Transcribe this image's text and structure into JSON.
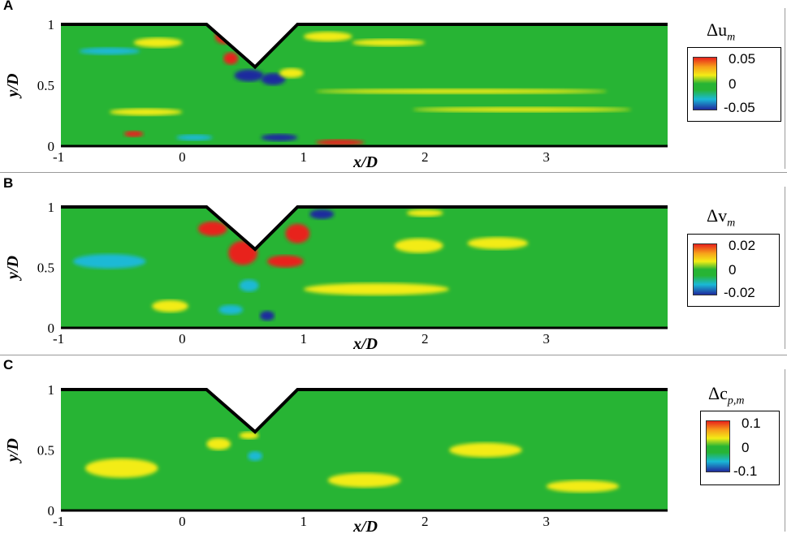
{
  "panels": [
    {
      "letter": "A",
      "quantity": "Δu",
      "subscript": "m",
      "cbar_labels": [
        "0.05",
        "0",
        "-0.05"
      ]
    },
    {
      "letter": "B",
      "quantity": "Δv",
      "subscript": "m",
      "cbar_labels": [
        "0.02",
        "0",
        "-0.02"
      ]
    },
    {
      "letter": "C",
      "quantity": "Δc",
      "subscript": "p,m",
      "cbar_labels": [
        "0.1",
        "0",
        "-0.1"
      ]
    }
  ],
  "colors": {
    "high": "#e8231c",
    "mid_high": "#f3ec16",
    "zero": "#27b434",
    "mid_low": "#1ab9d6",
    "low": "#1f2a9e"
  },
  "chart_data": [
    {
      "type": "heatmap",
      "title": "A",
      "xlabel": "x/D",
      "ylabel": "y/D",
      "xlim": [
        -1,
        4
      ],
      "ylim": [
        0,
        1
      ],
      "xticks": [
        "-1",
        "0",
        "1",
        "2",
        "3"
      ],
      "yticks": [
        "0",
        "0.5",
        "1"
      ],
      "colorbar": {
        "label": "Δu_m",
        "range": [
          -0.05,
          0.05
        ],
        "ticks": [
          "0.05",
          "0",
          "-0.05"
        ]
      },
      "geometry": "wall at y/D=1 with V-shaped notch spanning x/D≈0.2–1.0, apex at y/D≈0.65 near x/D≈0.6"
    },
    {
      "type": "heatmap",
      "title": "B",
      "xlabel": "x/D",
      "ylabel": "y/D",
      "xlim": [
        -1,
        4
      ],
      "ylim": [
        0,
        1
      ],
      "xticks": [
        "-1",
        "0",
        "1",
        "2",
        "3"
      ],
      "yticks": [
        "0",
        "0.5",
        "1"
      ],
      "colorbar": {
        "label": "Δv_m",
        "range": [
          -0.02,
          0.02
        ],
        "ticks": [
          "0.02",
          "0",
          "-0.02"
        ]
      }
    },
    {
      "type": "heatmap",
      "title": "C",
      "xlabel": "x/D",
      "ylabel": "y/D",
      "xlim": [
        -1,
        4
      ],
      "ylim": [
        0,
        1
      ],
      "xticks": [
        "-1",
        "0",
        "1",
        "2",
        "3"
      ],
      "yticks": [
        "0",
        "0.5",
        "1"
      ],
      "colorbar": {
        "label": "Δc_p,m",
        "range": [
          -0.1,
          0.1
        ],
        "ticks": [
          "0.1",
          "0",
          "-0.1"
        ]
      }
    }
  ]
}
